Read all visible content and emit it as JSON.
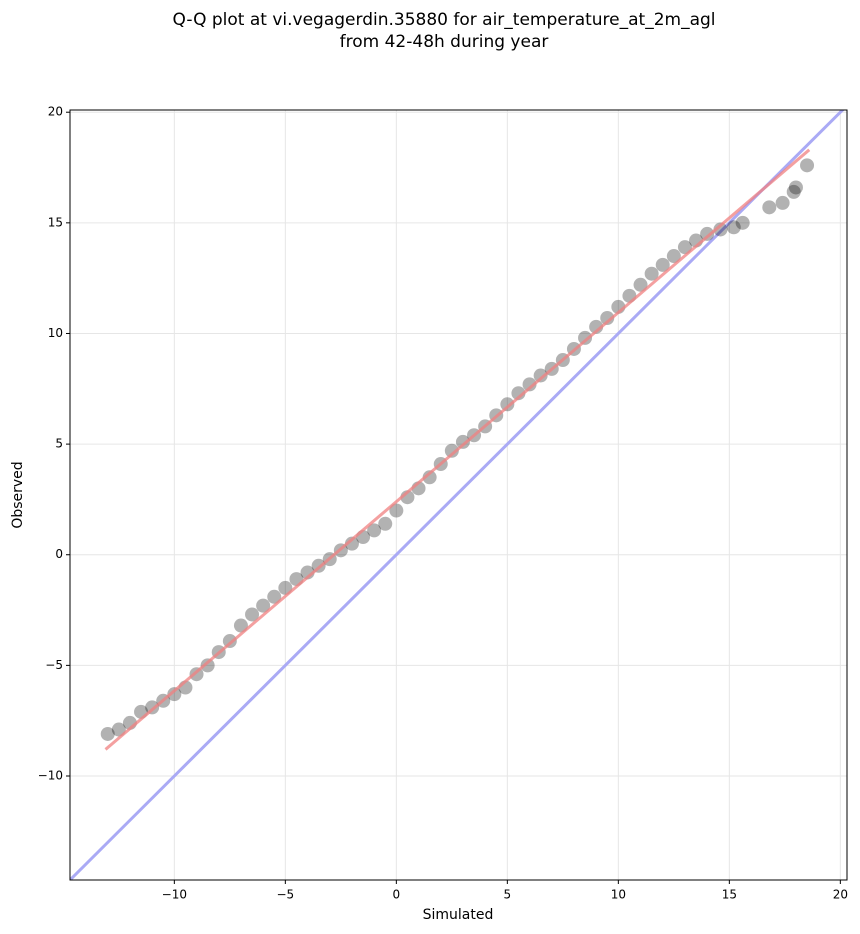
{
  "chart_data": {
    "type": "scatter",
    "title_lines": [
      "Q-Q plot at vi.vegagerdin.35880 for air_temperature_at_2m_agl",
      "from 42-48h during year"
    ],
    "xlabel": "Simulated",
    "ylabel": "Observed",
    "xlim": [
      -14.7,
      20.3
    ],
    "ylim": [
      -14.7,
      20.1
    ],
    "xticks": [
      {
        "value": -10,
        "label": "−10"
      },
      {
        "value": -5,
        "label": "−5"
      },
      0,
      5,
      10,
      15,
      20
    ],
    "yticks": [
      {
        "value": -10,
        "label": "−10"
      },
      {
        "value": -5,
        "label": "−5"
      },
      0,
      5,
      10,
      15,
      20
    ],
    "grid": true,
    "point_color": "#000000",
    "point_opacity": 0.3,
    "x": [
      -13,
      -12.5,
      -12,
      -11.5,
      -11,
      -10.5,
      -10,
      -9.5,
      -9,
      -8.5,
      -8,
      -7.5,
      -7,
      -6.5,
      -6,
      -5.5,
      -5,
      -4.5,
      -4,
      -3.5,
      -3,
      -2.5,
      -2,
      -1.5,
      -1,
      -0.5,
      0,
      0.5,
      1,
      1.5,
      2,
      2.5,
      3,
      3.5,
      4,
      4.5,
      5,
      5.5,
      6,
      6.5,
      7,
      7.5,
      8,
      8.5,
      9,
      9.5,
      10,
      10.5,
      11,
      11.5,
      12,
      12.5,
      13,
      13.5,
      14,
      14.6,
      15.2,
      15.6,
      16.8,
      17.4,
      17.9,
      18,
      18.5
    ],
    "y": [
      -8.1,
      -7.9,
      -7.6,
      -7.1,
      -6.9,
      -6.6,
      -6.3,
      -6.0,
      -5.4,
      -5.0,
      -4.4,
      -3.9,
      -3.2,
      -2.7,
      -2.3,
      -1.9,
      -1.5,
      -1.1,
      -0.8,
      -0.5,
      -0.2,
      0.2,
      0.5,
      0.8,
      1.1,
      1.4,
      2.0,
      2.6,
      3.0,
      3.5,
      4.1,
      4.7,
      5.1,
      5.4,
      5.8,
      6.3,
      6.8,
      7.3,
      7.7,
      8.1,
      8.4,
      8.8,
      9.3,
      9.8,
      10.3,
      10.7,
      11.2,
      11.7,
      12.2,
      12.7,
      13.1,
      13.5,
      13.9,
      14.2,
      14.5,
      14.7,
      14.8,
      15.0,
      15.7,
      15.9,
      16.4,
      16.6,
      17.6
    ],
    "fit_line": {
      "x": [
        -13.1,
        18.6
      ],
      "y": [
        -8.8,
        18.3
      ],
      "color": "#f08080"
    },
    "identity_line": {
      "color": "#aaaaf5"
    }
  }
}
